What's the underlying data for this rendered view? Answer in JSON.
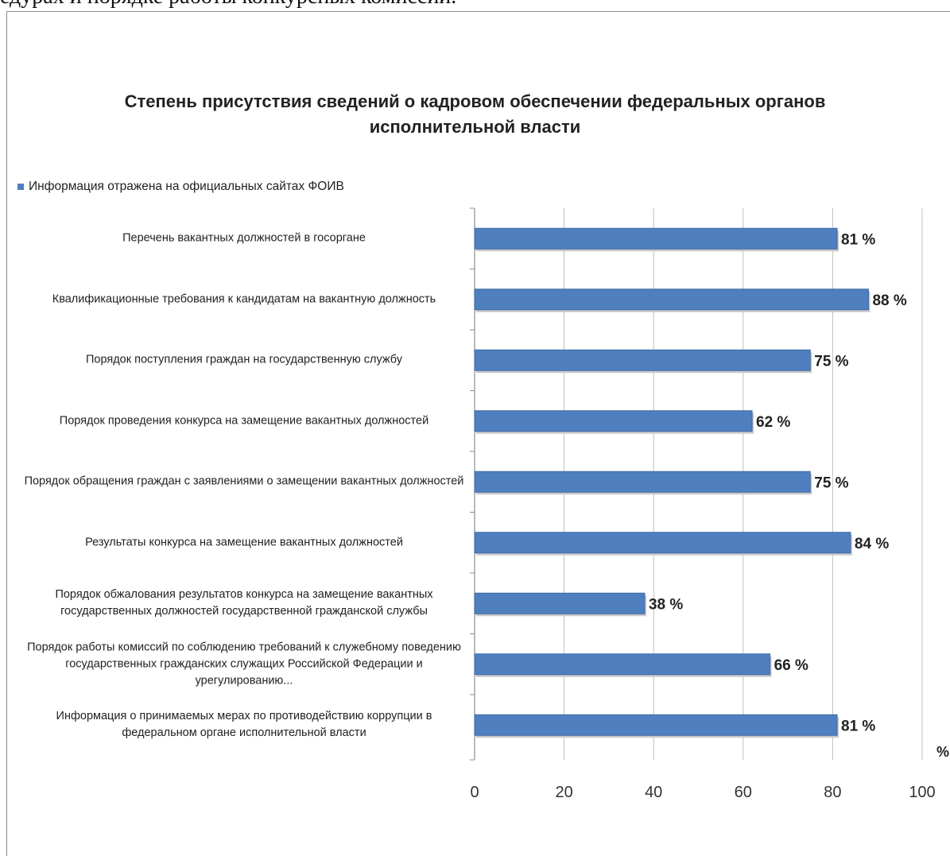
{
  "page": {
    "top_text": "едурах и порядке работы конкурсных комиссий."
  },
  "colors": {
    "bar": "#4f7fbf",
    "bar_edge": "#3f6aa6",
    "grid": "#bfbfbf",
    "axis": "#8c8c8c"
  },
  "chart_data": {
    "type": "bar",
    "orientation": "horizontal",
    "title": "Степень присутствия сведений о кадровом  обеспечении федеральных органов исполнительной власти",
    "legend": {
      "label": "Информация отражена на официальных сайтах ФОИВ",
      "placement": "top-left"
    },
    "xlabel": "%",
    "xlim": [
      0,
      100
    ],
    "xticks": [
      "0",
      "20",
      "40",
      "60",
      "80",
      "100"
    ],
    "grid": true,
    "categories": [
      "Перечень вакантных должностей в госоргане",
      "Квалификационные требования к кандидатам на вакантную должность",
      "Порядок поступления граждан на государственную службу",
      "Порядок проведения конкурса на замещение вакантных должностей",
      "Порядок обращения граждан с заявлениями о замещении вакантных должностей",
      "Результаты конкурса на замещение вакантных должностей",
      "Порядок обжалования результатов конкурса на замещение вакантных государственных должностей государственной гражданской службы",
      "Порядок работы комиссий по соблюдению требований к служебному поведению государственных гражданских служащих Российской Федерации и урегулированию...",
      "Информация о принимаемых мерах по противодействию коррупции в федеральном органе исполнительной власти"
    ],
    "series": [
      {
        "name": "Информация отражена на официальных сайтах ФОИВ",
        "values": [
          81,
          88,
          75,
          62,
          75,
          84,
          38,
          66,
          81
        ],
        "value_labels": [
          "81 %",
          "88 %",
          "75 %",
          "62 %",
          "75 %",
          "84 %",
          "38 %",
          "66 %",
          "81 %"
        ]
      }
    ]
  }
}
